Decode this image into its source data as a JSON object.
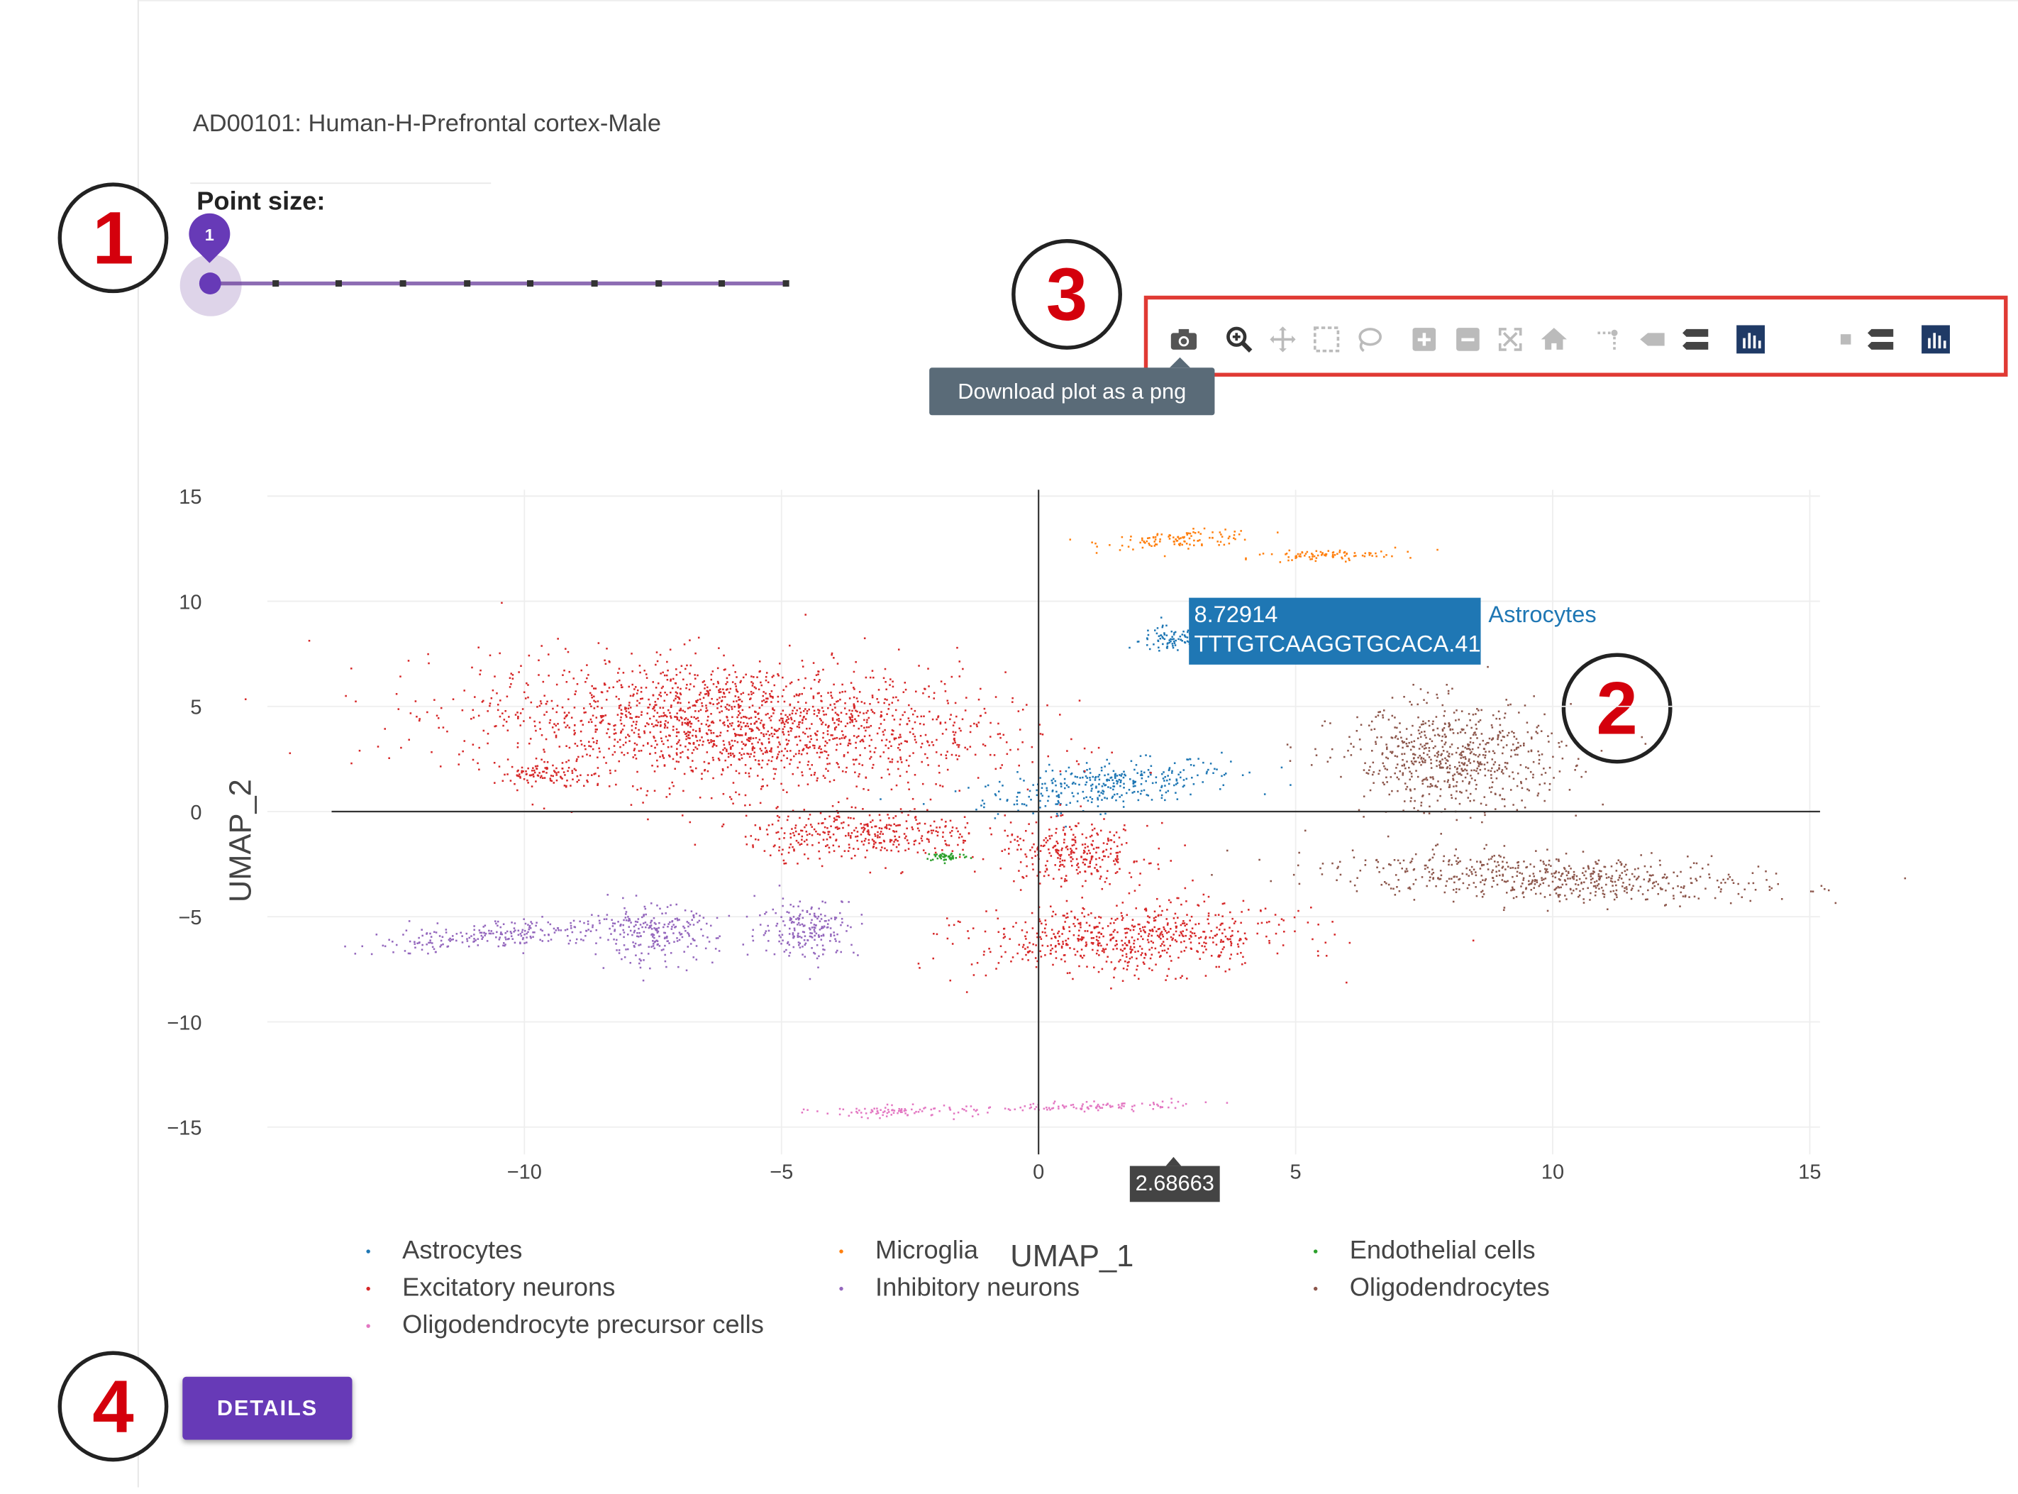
{
  "dataset_title": "AD00101: Human-H-Prefrontal cortex-Male",
  "point_size": {
    "label": "Point size:",
    "value": "1",
    "fraction": 0.0,
    "steps": 10
  },
  "callouts": [
    "1",
    "2",
    "3",
    "4"
  ],
  "toolbar": {
    "tools": [
      {
        "icon": "camera-icon",
        "name": "Download plot as a png"
      },
      {
        "icon": "zoom-icon"
      },
      {
        "icon": "pan-icon"
      },
      {
        "icon": "box-select-icon"
      },
      {
        "icon": "lasso-select-icon"
      },
      {
        "icon": "zoom-in-icon"
      },
      {
        "icon": "zoom-out-icon"
      },
      {
        "icon": "autoscale-icon"
      },
      {
        "icon": "reset-axes-icon"
      },
      {
        "icon": "spike-lines-icon"
      },
      {
        "icon": "hover-closest-icon"
      },
      {
        "icon": "hover-compare-icon"
      },
      {
        "icon": "plotly-logo-icon"
      },
      {
        "icon": "hover-closest-icon"
      },
      {
        "icon": "hover-compare-icon"
      },
      {
        "icon": "plotly-logo-icon"
      }
    ],
    "tooltip": "Download plot as a png"
  },
  "hover": {
    "y_value": "8.72914",
    "cell_id": "TTTGTCAAGGTGCACA.41",
    "group": "Astrocytes",
    "x_value": "2.68663"
  },
  "details_button": "DETAILS",
  "colors": {
    "accent": "#673ab7",
    "Astrocytes": "#1f77b4",
    "Microglia": "#ff7f0e",
    "Endothelial cells": "#2ca02c",
    "Excitatory neurons": "#d62728",
    "Inhibitory neurons": "#9467bd",
    "Oligodendrocytes": "#8c564b",
    "Oligodendrocyte precursor cells": "#e377c2"
  },
  "chart_data": {
    "type": "scatter",
    "xlabel": "UMAP_1",
    "ylabel": "UMAP_2",
    "xlim": [
      -15,
      15.2
    ],
    "ylim": [
      -16.3,
      15.3
    ],
    "xticks": [
      -10,
      -5,
      0,
      5,
      10,
      15
    ],
    "yticks": [
      15,
      10,
      5,
      0,
      -5,
      -10,
      -15
    ],
    "xtick_labels": [
      "−10",
      "−5",
      "0",
      "5",
      "10",
      "15"
    ],
    "ytick_labels": [
      "15",
      "10",
      "5",
      "0",
      "−5",
      "−10",
      "−15"
    ],
    "grid": true,
    "legend_position": "bottom",
    "series": [
      {
        "name": "Astrocytes",
        "clusters": [
          [
            1.3,
            1.3,
            2.3,
            0.9,
            0.28
          ],
          [
            2.6,
            8.2,
            0.6,
            0.6,
            0.08
          ]
        ]
      },
      {
        "name": "Microglia",
        "clusters": [
          [
            2.8,
            13.0,
            1.4,
            0.35,
            0.1
          ],
          [
            5.5,
            12.2,
            1.3,
            0.25,
            0.08
          ]
        ]
      },
      {
        "name": "Endothelial cells",
        "clusters": [
          [
            -1.8,
            -2.1,
            0.4,
            0.2,
            0.0
          ]
        ]
      },
      {
        "name": "Excitatory neurons",
        "clusters": [
          [
            -6.0,
            4.2,
            4.6,
            2.7,
            -0.1
          ],
          [
            -3.4,
            -1.0,
            2.1,
            1.1,
            0.0
          ],
          [
            0.7,
            -2.0,
            1.3,
            1.3,
            0.0
          ],
          [
            1.8,
            -6.0,
            2.8,
            1.5,
            0.1
          ],
          [
            -9.5,
            1.8,
            0.9,
            0.4,
            -0.1
          ]
        ]
      },
      {
        "name": "Inhibitory neurons",
        "clusters": [
          [
            -10.5,
            -5.8,
            2.3,
            0.6,
            0.22
          ],
          [
            -7.5,
            -5.8,
            1.1,
            1.2,
            0.0
          ],
          [
            -4.5,
            -5.5,
            0.9,
            1.3,
            0.0
          ]
        ]
      },
      {
        "name": "Oligodendrocytes",
        "clusters": [
          [
            8.1,
            2.6,
            1.9,
            2.3,
            0.15
          ],
          [
            9.9,
            -3.1,
            3.8,
            1.0,
            -0.1
          ]
        ]
      },
      {
        "name": "Oligodendrocyte precursor cells",
        "clusters": [
          [
            -2.8,
            -14.2,
            1.4,
            0.25,
            0.0
          ],
          [
            0.8,
            -14.0,
            2.2,
            0.2,
            0.05
          ]
        ]
      }
    ]
  },
  "legend": [
    {
      "name": "Astrocytes"
    },
    {
      "name": "Microglia"
    },
    {
      "name": "Endothelial cells"
    },
    {
      "name": "Excitatory neurons"
    },
    {
      "name": "Inhibitory neurons"
    },
    {
      "name": "Oligodendrocytes"
    },
    {
      "name": "Oligodendrocyte precursor cells"
    }
  ]
}
